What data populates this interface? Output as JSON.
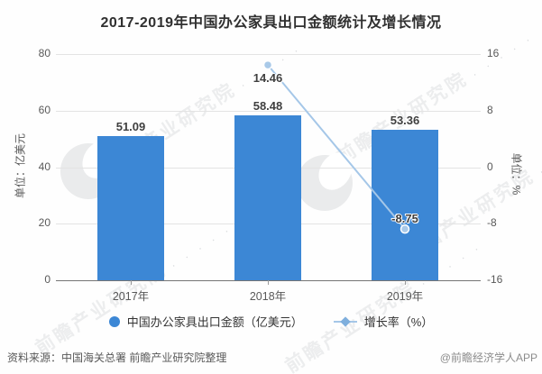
{
  "chart_data": {
    "type": "bar",
    "title": "2017-2019年中国办公家具出口金额统计及增长情况",
    "categories": [
      "2017年",
      "2018年",
      "2019年"
    ],
    "series": [
      {
        "name": "中国办公家具出口金额（亿美元）",
        "type": "bar",
        "axis": "left",
        "values": [
          51.09,
          58.48,
          53.36
        ],
        "labels": [
          "51.09",
          "58.48",
          "53.36"
        ]
      },
      {
        "name": "增长率（%）",
        "type": "line",
        "axis": "right",
        "values": [
          null,
          14.46,
          -8.75
        ],
        "labels": [
          null,
          "14.46",
          "-8.75"
        ]
      }
    ],
    "left_axis": {
      "label": "单位：亿美元",
      "range": [
        0,
        80
      ],
      "ticks": [
        0,
        20,
        40,
        60,
        80
      ]
    },
    "right_axis": {
      "label": "单位：%",
      "range": [
        -16,
        16
      ],
      "ticks": [
        -16,
        -8,
        0,
        8,
        16
      ]
    },
    "grid": true,
    "legend_position": "bottom"
  },
  "legend": {
    "items": [
      {
        "label": "中国办公家具出口金额（亿美元）",
        "marker": "circle"
      },
      {
        "label": "增长率（%）",
        "marker": "line-diamond"
      }
    ]
  },
  "footer": {
    "source": "资料来源：中国海关总署 前瞻产业研究院整理",
    "credit": "@前瞻经济学人APP"
  },
  "watermark": {
    "text": "前瞻产业研究院"
  },
  "colors": {
    "bar": "#3c87d5",
    "line": "#a5c7e8",
    "line_dot_fill": "#a9c9e8",
    "grid": "#e3e3e3",
    "axis": "#757575",
    "tick_label": "#595959",
    "data_label": "#3f3f3f",
    "title": "#303030",
    "footer": "#595959"
  }
}
